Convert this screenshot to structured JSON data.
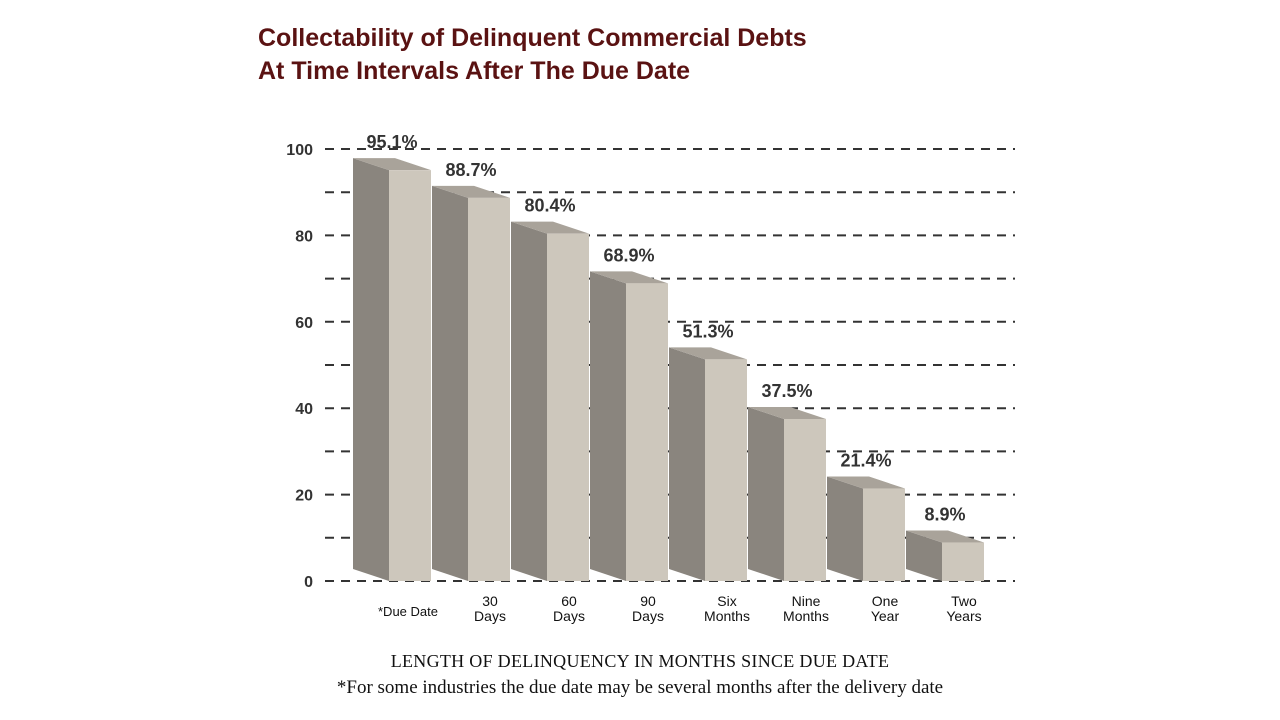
{
  "chart_data": {
    "type": "bar",
    "title_line1": "Collectability of Delinquent Commercial Debts",
    "title_line2": "At Time Intervals After The Due Date",
    "xlabel": "LENGTH OF DELINQUENCY IN MONTHS SINCE DUE DATE",
    "ylabel": "",
    "footnote": "*For some industries the due date may be several months after the delivery date",
    "categories": [
      [
        "*Due Date"
      ],
      [
        "30",
        "Days"
      ],
      [
        "60",
        "Days"
      ],
      [
        "90",
        "Days"
      ],
      [
        "Six",
        "Months"
      ],
      [
        "Nine",
        "Months"
      ],
      [
        "One",
        "Year"
      ],
      [
        "Two",
        "Years"
      ]
    ],
    "values": [
      95.1,
      88.7,
      80.4,
      68.9,
      51.3,
      37.5,
      21.4,
      8.9
    ],
    "value_labels": [
      "95.1%",
      "88.7%",
      "80.4%",
      "68.9%",
      "51.3%",
      "37.5%",
      "21.4%",
      "8.9%"
    ],
    "yticks": [
      "0",
      "20",
      "40",
      "60",
      "80",
      "100"
    ],
    "ylim": [
      0,
      100
    ],
    "grid": true,
    "colors": {
      "bar_front": "#cdc7bc",
      "bar_side": "#8a857e",
      "bar_top": "#a9a39a",
      "title": "#5a1212",
      "text": "#333333",
      "grid": "#333333"
    }
  }
}
